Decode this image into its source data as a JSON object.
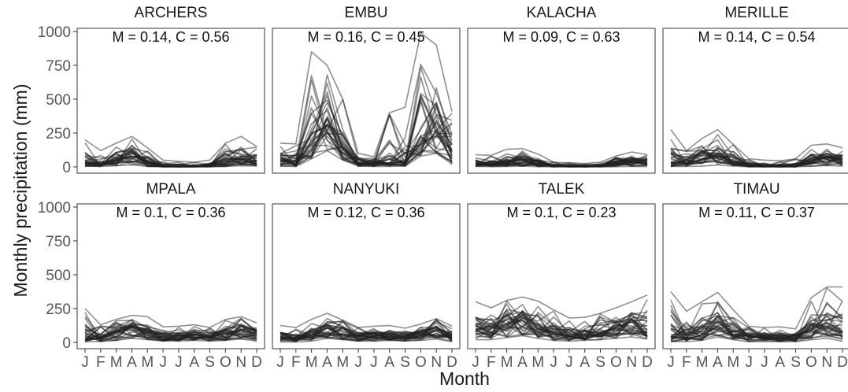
{
  "figure": {
    "ylabel": "Monthly precipitation (mm)",
    "xlabel": "Month"
  },
  "chart_data": {
    "type": "line",
    "facet_layout": "4 columns x 2 rows",
    "categories": [
      "J",
      "F",
      "M",
      "A",
      "M",
      "J",
      "J",
      "A",
      "S",
      "O",
      "N",
      "D"
    ],
    "ylim": [
      0,
      1000
    ],
    "yticks": [
      0,
      250,
      500,
      750,
      1000
    ],
    "grid": false,
    "line_color": "#222222",
    "line_opacity": 0.5,
    "panels": [
      {
        "name": "ARCHERS",
        "annotation": "M = 0.14, C = 0.56",
        "values_low": [
          5,
          3,
          8,
          15,
          3,
          0,
          0,
          0,
          0,
          3,
          8,
          5
        ],
        "values_mean": [
          35,
          25,
          55,
          80,
          30,
          5,
          3,
          3,
          5,
          40,
          60,
          45
        ],
        "values_high": [
          200,
          120,
          175,
          225,
          140,
          50,
          40,
          35,
          50,
          175,
          225,
          150
        ]
      },
      {
        "name": "EMBU",
        "annotation": "M = 0.16, C = 0.45",
        "values_low": [
          5,
          3,
          60,
          120,
          50,
          5,
          3,
          3,
          5,
          80,
          100,
          20
        ],
        "values_mean": [
          50,
          40,
          180,
          310,
          150,
          30,
          25,
          30,
          35,
          230,
          270,
          120
        ],
        "values_high": [
          175,
          170,
          850,
          750,
          500,
          100,
          75,
          400,
          440,
          990,
          900,
          410
        ]
      },
      {
        "name": "KALACHA",
        "annotation": "M = 0.09, C = 0.63",
        "values_low": [
          3,
          2,
          3,
          5,
          2,
          0,
          0,
          0,
          0,
          2,
          3,
          2
        ],
        "values_mean": [
          25,
          20,
          35,
          50,
          20,
          8,
          5,
          5,
          5,
          25,
          40,
          30
        ],
        "values_high": [
          90,
          85,
          130,
          135,
          95,
          35,
          30,
          25,
          35,
          80,
          110,
          90
        ]
      },
      {
        "name": "MERILLE",
        "annotation": "M = 0.14, C = 0.54",
        "values_low": [
          3,
          3,
          5,
          15,
          5,
          0,
          0,
          0,
          0,
          5,
          10,
          5
        ],
        "values_mean": [
          35,
          30,
          60,
          85,
          40,
          10,
          8,
          8,
          10,
          45,
          70,
          50
        ],
        "values_high": [
          275,
          120,
          210,
          275,
          165,
          60,
          50,
          45,
          60,
          160,
          170,
          140
        ]
      },
      {
        "name": "MPALA",
        "annotation": "M = 0.1, C = 0.36",
        "values_low": [
          5,
          5,
          15,
          30,
          20,
          10,
          10,
          15,
          10,
          15,
          25,
          10
        ],
        "values_mean": [
          45,
          40,
          75,
          110,
          80,
          45,
          50,
          55,
          45,
          65,
          90,
          60
        ],
        "values_high": [
          250,
          130,
          170,
          200,
          190,
          115,
          120,
          130,
          110,
          170,
          190,
          145
        ]
      },
      {
        "name": "NANYUKI",
        "annotation": "M = 0.12, C = 0.36",
        "values_low": [
          3,
          3,
          10,
          30,
          20,
          10,
          10,
          15,
          10,
          15,
          25,
          5
        ],
        "values_mean": [
          35,
          30,
          60,
          105,
          75,
          40,
          50,
          60,
          45,
          60,
          80,
          40
        ],
        "values_high": [
          125,
          110,
          170,
          215,
          165,
          110,
          120,
          125,
          105,
          135,
          175,
          120
        ]
      },
      {
        "name": "TALEK",
        "annotation": "M = 0.1, C = 0.23",
        "values_low": [
          20,
          20,
          35,
          50,
          30,
          15,
          10,
          15,
          20,
          30,
          40,
          25
        ],
        "values_mean": [
          115,
          105,
          135,
          160,
          120,
          70,
          60,
          65,
          75,
          110,
          150,
          120
        ],
        "values_high": [
          300,
          255,
          310,
          335,
          305,
          240,
          180,
          185,
          215,
          255,
          300,
          350
        ]
      },
      {
        "name": "TIMAU",
        "annotation": "M = 0.11, C = 0.37",
        "values_low": [
          5,
          5,
          15,
          40,
          20,
          5,
          5,
          5,
          5,
          20,
          30,
          10
        ],
        "values_mean": [
          45,
          35,
          90,
          150,
          85,
          40,
          40,
          45,
          40,
          100,
          150,
          80
        ],
        "values_high": [
          375,
          230,
          300,
          370,
          240,
          120,
          110,
          115,
          100,
          330,
          410,
          410
        ]
      }
    ]
  }
}
